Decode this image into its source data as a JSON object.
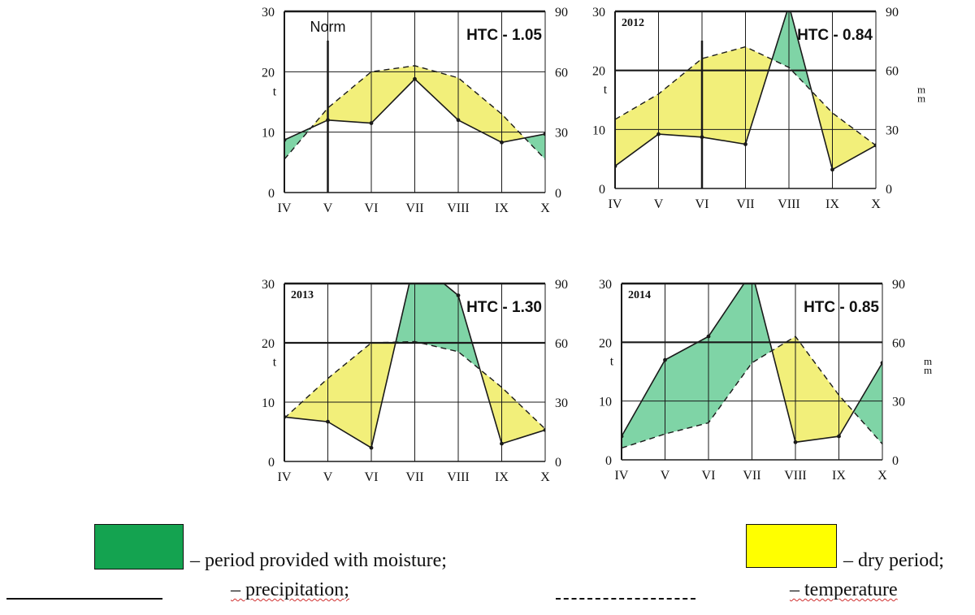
{
  "colors": {
    "moist": "#7fd4a6",
    "dry": "#f2ef7a",
    "legend_moist": "#14a350",
    "legend_dry": "#ffff00",
    "line": "#1a1a1a",
    "grid": "#1a1a1a"
  },
  "chart_data": [
    {
      "type": "area",
      "label": "Norm",
      "htc": "HTC - 1.05",
      "categories": [
        "IV",
        "V",
        "VI",
        "VII",
        "VIII",
        "IX",
        "X"
      ],
      "y_left": {
        "label": "t",
        "ylim": [
          0,
          30
        ],
        "ticks": [
          "0",
          "10",
          "20",
          "30"
        ]
      },
      "y_right": {
        "label": "",
        "ylim": [
          0,
          90
        ],
        "ticks": [
          "0",
          "30",
          "60",
          "90"
        ]
      },
      "series": [
        {
          "name": "precipitation",
          "style": "solid",
          "values": [
            8.7,
            12.0,
            11.5,
            18.8,
            12.0,
            8.3,
            9.7
          ]
        },
        {
          "name": "temperature",
          "style": "dashed",
          "values": [
            5.5,
            14.0,
            20.0,
            21.0,
            19.0,
            13.0,
            5.5
          ]
        }
      ]
    },
    {
      "type": "area",
      "label": "2012",
      "htc": "HTC - 0.84",
      "categories": [
        "IV",
        "V",
        "VI",
        "VII",
        "VIII",
        "IX",
        "X"
      ],
      "y_left": {
        "label": "t",
        "ylim": [
          0,
          30
        ],
        "ticks": [
          "0",
          "10",
          "20",
          "30"
        ]
      },
      "y_right": {
        "label": "m m",
        "ylim": [
          0,
          90
        ],
        "ticks": [
          "0",
          "30",
          "60",
          "90"
        ]
      },
      "series": [
        {
          "name": "precipitation",
          "style": "solid",
          "values": [
            3.8,
            9.2,
            8.7,
            7.5,
            31.0,
            3.2,
            7.3
          ]
        },
        {
          "name": "temperature",
          "style": "dashed",
          "values": [
            11.7,
            16.0,
            22.0,
            24.0,
            20.5,
            12.8,
            7.3
          ]
        }
      ]
    },
    {
      "type": "area",
      "label": "2013",
      "htc": "HTC - 1.30",
      "categories": [
        "IV",
        "V",
        "VI",
        "VII",
        "VIII",
        "IX",
        "X"
      ],
      "y_left": {
        "label": "t",
        "ylim": [
          0,
          30
        ],
        "ticks": [
          "0",
          "10",
          "20",
          "30"
        ]
      },
      "y_right": {
        "label": "",
        "ylim": [
          0,
          90
        ],
        "ticks": [
          "0",
          "30",
          "60",
          "90"
        ]
      },
      "series": [
        {
          "name": "precipitation",
          "style": "solid",
          "values": [
            7.5,
            6.7,
            2.3,
            34.0,
            28.0,
            3.0,
            5.3
          ]
        },
        {
          "name": "temperature",
          "style": "dashed",
          "values": [
            7.3,
            14.0,
            20.0,
            20.2,
            18.5,
            12.5,
            5.5
          ]
        }
      ]
    },
    {
      "type": "area",
      "label": "2014",
      "htc": "HTC - 0.85",
      "categories": [
        "IV",
        "V",
        "VI",
        "VII",
        "VIII",
        "IX",
        "X"
      ],
      "y_left": {
        "label": "t",
        "ylim": [
          0,
          30
        ],
        "ticks": [
          "0",
          "10",
          "20",
          "30"
        ]
      },
      "y_right": {
        "label": "m m",
        "ylim": [
          0,
          90
        ],
        "ticks": [
          "0",
          "30",
          "60",
          "90"
        ]
      },
      "series": [
        {
          "name": "precipitation",
          "style": "solid",
          "values": [
            4.0,
            17.0,
            21.0,
            32.0,
            3.0,
            4.0,
            16.5
          ]
        },
        {
          "name": "temperature",
          "style": "dashed",
          "values": [
            2.0,
            4.4,
            6.3,
            16.5,
            21.0,
            11.0,
            2.7
          ]
        }
      ]
    }
  ],
  "legend": {
    "moisture": "– period provided with moisture;",
    "dry": "– dry period;",
    "precipitation": "– precipitation;",
    "temperature": "– temperature"
  }
}
